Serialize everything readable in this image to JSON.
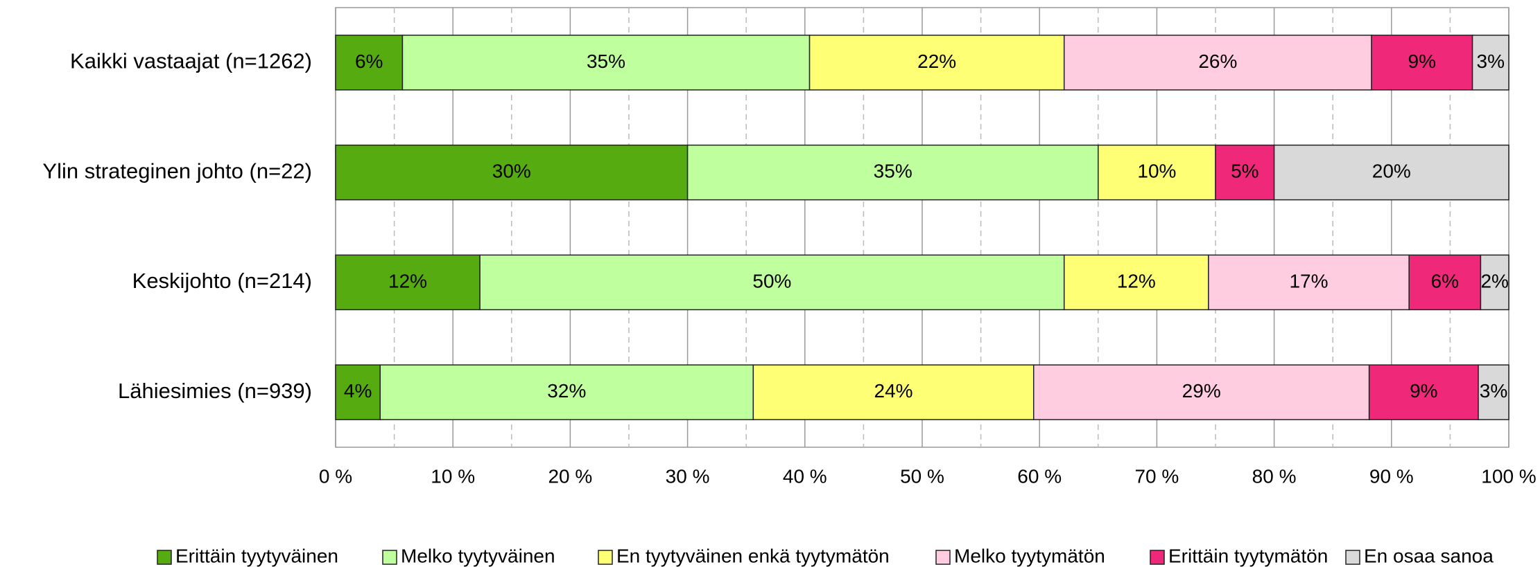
{
  "chart_data": {
    "type": "stacked-bar-horizontal",
    "categories": [
      "Kaikki vastaajat (n=1262)",
      "Ylin strateginen johto (n=22)",
      "Keskijohto (n=214)",
      "Lähiesimies (n=939)"
    ],
    "series": [
      {
        "name": "Erittäin tyytyväinen",
        "color": "#56ab10",
        "values": [
          5.7,
          30,
          12.3,
          3.8
        ],
        "value_labels": [
          "6%",
          "30%",
          "12%",
          "4%"
        ]
      },
      {
        "name": "Melko tyytyväinen",
        "color": "#c0ff9e",
        "values": [
          34.7,
          35,
          49.8,
          31.8
        ],
        "value_labels": [
          "35%",
          "35%",
          "50%",
          "32%"
        ]
      },
      {
        "name": "En tyytyväinen enkä tyytymätön",
        "color": "#ffff75",
        "values": [
          21.7,
          10,
          12.3,
          23.9
        ],
        "value_labels": [
          "22%",
          "10%",
          "12%",
          "24%"
        ]
      },
      {
        "name": "Melko tyytymätön",
        "color": "#ffcce0",
        "values": [
          26.2,
          0,
          17.1,
          28.6
        ],
        "value_labels": [
          "26%",
          null,
          "17%",
          "29%"
        ]
      },
      {
        "name": "Erittäin tyytymätön",
        "color": "#f0287a",
        "values": [
          8.6,
          5,
          6.1,
          9.3
        ],
        "value_labels": [
          "9%",
          "5%",
          "6%",
          "9%"
        ]
      },
      {
        "name": "En osaa sanoa",
        "color": "#d9d9d9",
        "values": [
          3.1,
          20,
          2.4,
          2.6
        ],
        "value_labels": [
          "3%",
          "20%",
          "2%",
          "3%"
        ]
      }
    ],
    "xlim": [
      0,
      100
    ],
    "xticks": [
      {
        "value": 0,
        "label": "0 %"
      },
      {
        "value": 10,
        "label": "10 %"
      },
      {
        "value": 20,
        "label": "20 %"
      },
      {
        "value": 30,
        "label": "30 %"
      },
      {
        "value": 40,
        "label": "40 %"
      },
      {
        "value": 50,
        "label": "50 %"
      },
      {
        "value": 60,
        "label": "60 %"
      },
      {
        "value": 70,
        "label": "70 %"
      },
      {
        "value": 80,
        "label": "80 %"
      },
      {
        "value": 90,
        "label": "90 %"
      },
      {
        "value": 100,
        "label": "100 %"
      }
    ],
    "minor_xticks": [
      5,
      15,
      25,
      35,
      45,
      55,
      65,
      75,
      85,
      95
    ],
    "grid": true,
    "legend": "bottom"
  }
}
